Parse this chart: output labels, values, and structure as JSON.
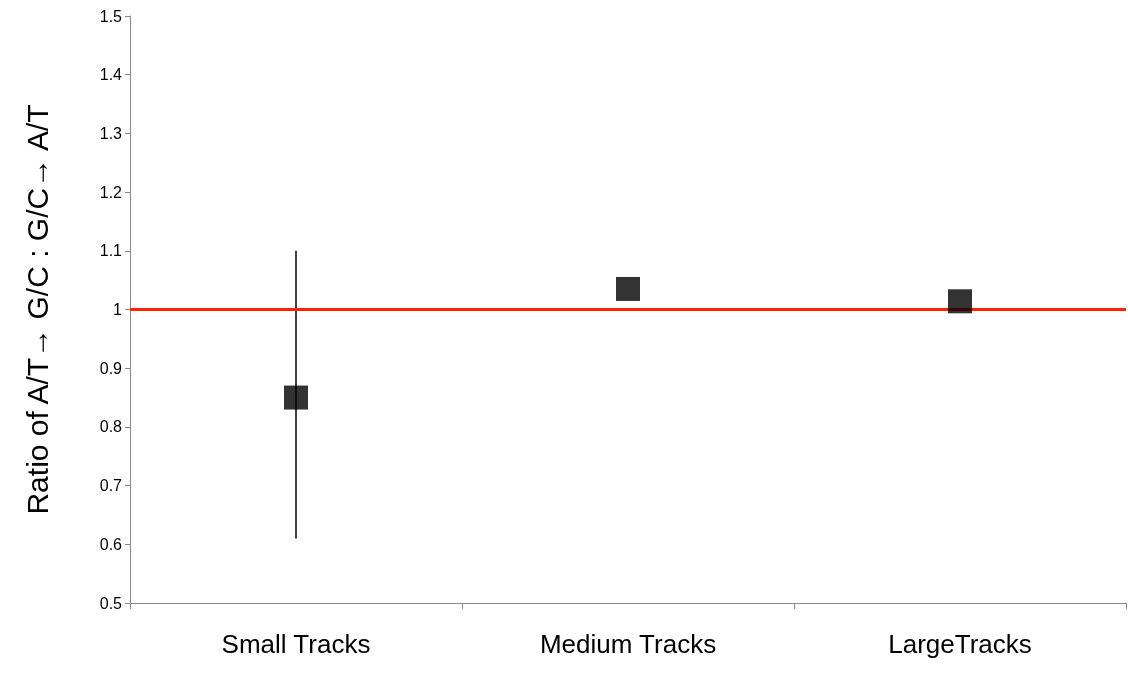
{
  "chart_data": {
    "type": "scatter",
    "ylabel": "Ratio of A/T→ G/C : G/C→ A/T",
    "categories": [
      "Small Tracks",
      "Medium Tracks",
      "LargeTracks"
    ],
    "series": [
      {
        "color": "#000000",
        "values": [
          0.85,
          1.035,
          1.014
        ],
        "errors": [
          [
            0.61,
            1.1
          ],
          null,
          null
        ]
      }
    ],
    "ylim": [
      0.5,
      1.5
    ],
    "yticks": [
      0.5,
      0.6,
      0.7,
      0.8,
      0.9,
      1,
      1.1,
      1.2,
      1.3,
      1.4,
      1.5
    ],
    "ref_lines": [
      {
        "axis": "y",
        "value": 1,
        "color": "#ff2200",
        "line_style": "solid"
      }
    ],
    "marker": "square",
    "grid": false
  }
}
